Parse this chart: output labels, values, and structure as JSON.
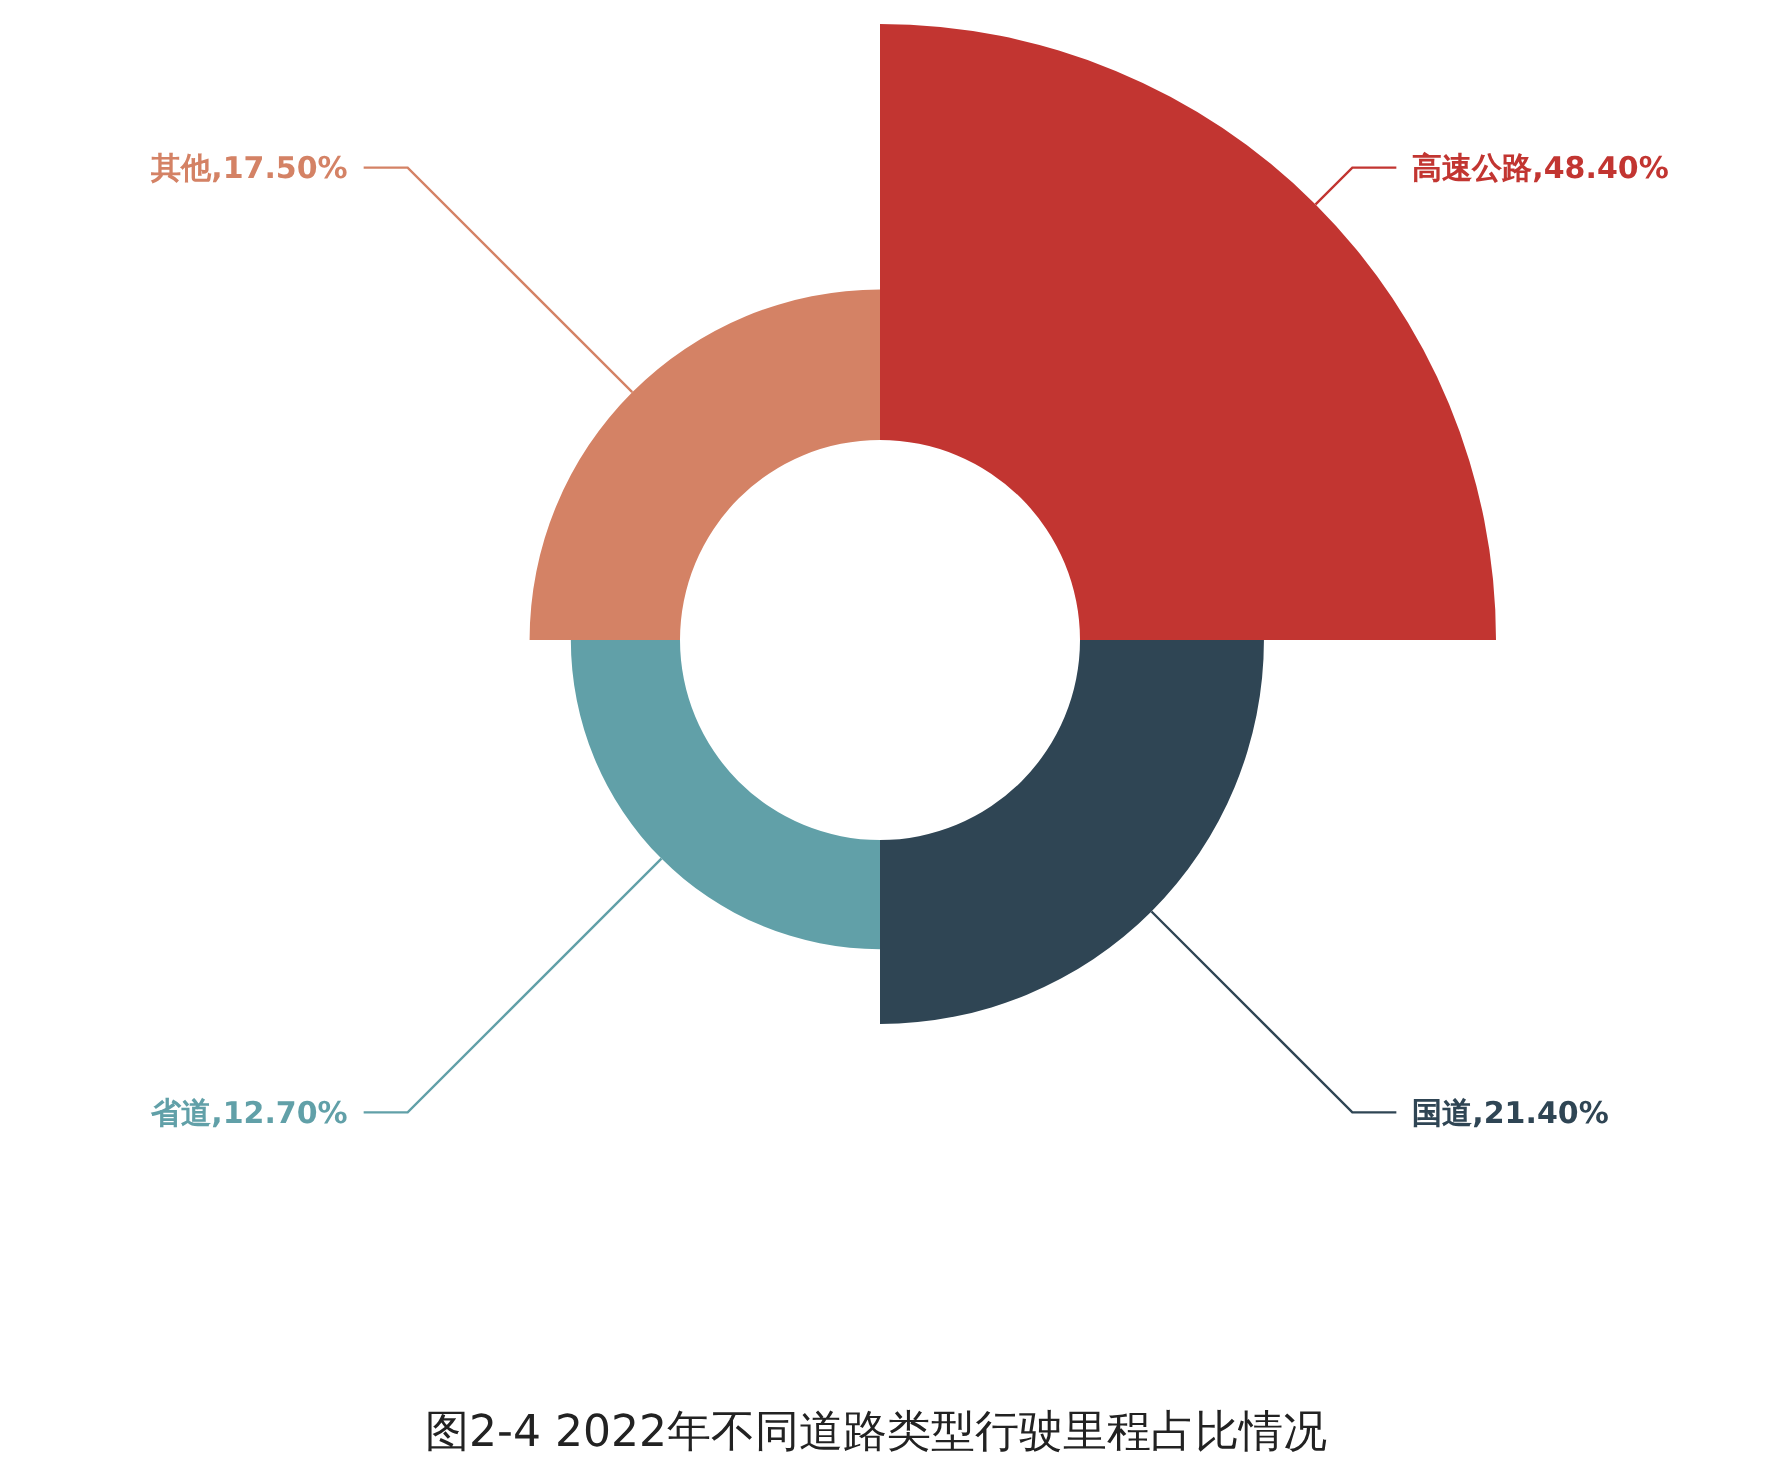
{
  "chart_data": {
    "type": "other",
    "title": "图2-4 2022年不同道路类型行驶里程占比情况",
    "categories": [
      "高速公路",
      "国道",
      "省道",
      "其他"
    ],
    "values": [
      48.4,
      21.4,
      12.7,
      17.5
    ],
    "value_labels": [
      ",48.40%",
      ",21.40%",
      ",12.70%",
      ",17.50%"
    ],
    "colors": [
      "#c23531",
      "#2f4554",
      "#61a0a8",
      "#d48265"
    ]
  }
}
